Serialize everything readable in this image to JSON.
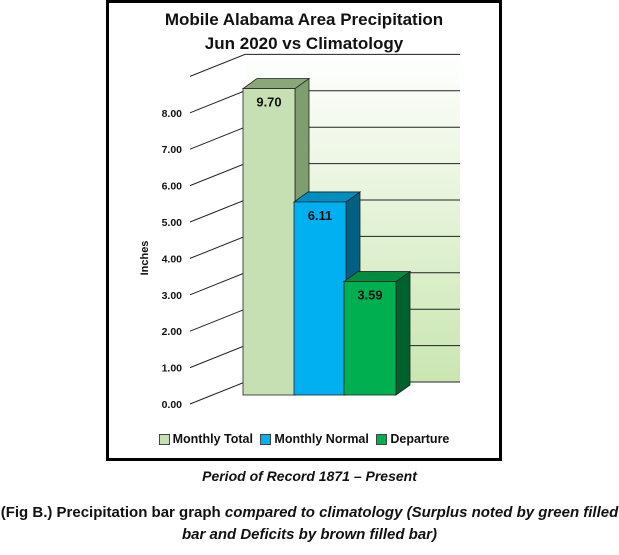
{
  "chart_data": {
    "type": "bar",
    "title": "Mobile Alabama Area Precipitation",
    "subtitle": "Jun 2020 vs Climatology",
    "ylabel": "Inches",
    "ylim": [
      0,
      9
    ],
    "yticks": [
      "0.00",
      "1.00",
      "2.00",
      "3.00",
      "4.00",
      "5.00",
      "6.00",
      "7.00",
      "8.00"
    ],
    "categories": [
      "Monthly Total",
      "Monthly Normal",
      "Departure"
    ],
    "values": [
      9.7,
      6.11,
      3.59
    ],
    "value_labels": [
      "9.70",
      "6.11",
      "3.59"
    ],
    "colors": [
      "#c6e0b4",
      "#00b0f0",
      "#00b050"
    ],
    "legend": [
      "Monthly Total",
      "Monthly Normal",
      "Departure"
    ],
    "legend_position": "bottom",
    "grid": true
  },
  "footer": {
    "period": "Period of Record 1871 – Present",
    "caption_bold": "(Fig B.) Precipitation bar graph ",
    "caption_italic": "compared to climatology (Surplus noted by green filled bar and Deficits by brown filled bar)"
  }
}
